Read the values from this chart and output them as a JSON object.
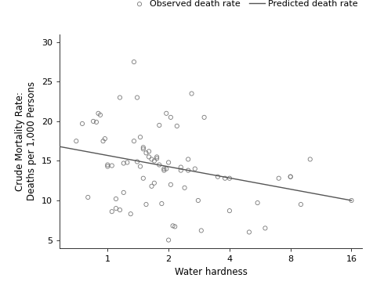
{
  "title": "",
  "xlabel": "Water hardness",
  "ylabel": "Crude Mortality Rate:\nDeaths per 1,000 Persons",
  "xlim_log": [
    0.58,
    18
  ],
  "ylim": [
    4,
    31
  ],
  "yticks": [
    5,
    10,
    15,
    20,
    25,
    30
  ],
  "xticks": [
    1,
    2,
    4,
    8,
    16
  ],
  "scatter_x": [
    0.7,
    0.75,
    0.8,
    0.85,
    0.88,
    0.9,
    0.92,
    0.95,
    0.97,
    1.0,
    1.0,
    1.05,
    1.05,
    1.1,
    1.1,
    1.15,
    1.15,
    1.2,
    1.2,
    1.25,
    1.3,
    1.35,
    1.35,
    1.4,
    1.4,
    1.45,
    1.45,
    1.5,
    1.5,
    1.5,
    1.55,
    1.55,
    1.6,
    1.6,
    1.65,
    1.65,
    1.7,
    1.7,
    1.75,
    1.75,
    1.8,
    1.8,
    1.85,
    1.9,
    1.9,
    1.95,
    1.95,
    2.0,
    2.0,
    2.05,
    2.05,
    2.1,
    2.15,
    2.2,
    2.3,
    2.3,
    2.4,
    2.5,
    2.5,
    2.6,
    2.7,
    2.8,
    2.9,
    3.0,
    3.5,
    3.8,
    4.0,
    4.0,
    5.0,
    5.5,
    6.0,
    7.0,
    8.0,
    8.0,
    9.0,
    10.0,
    16.0
  ],
  "scatter_y": [
    17.5,
    19.7,
    10.4,
    20.0,
    19.9,
    21.0,
    20.8,
    17.5,
    17.8,
    14.3,
    14.5,
    8.6,
    14.4,
    9.0,
    10.2,
    8.8,
    23.0,
    11.0,
    14.7,
    14.8,
    8.3,
    17.5,
    27.5,
    23.0,
    14.9,
    14.3,
    18.0,
    16.7,
    16.5,
    12.8,
    16.0,
    9.5,
    15.5,
    16.2,
    15.2,
    11.8,
    12.2,
    15.0,
    15.5,
    15.3,
    19.5,
    14.5,
    9.6,
    14.0,
    13.8,
    14.0,
    21.0,
    14.8,
    5.0,
    12.0,
    20.5,
    6.8,
    6.7,
    19.4,
    14.2,
    13.8,
    11.6,
    15.2,
    13.8,
    23.5,
    14.0,
    10.0,
    6.2,
    20.5,
    13.0,
    12.8,
    12.8,
    8.7,
    6.0,
    9.7,
    6.5,
    12.8,
    13.0,
    13.0,
    9.5,
    15.2,
    10.0
  ],
  "line_x": [
    0.58,
    16.0
  ],
  "line_y": [
    16.8,
    10.0
  ],
  "scatter_color": "#777777",
  "line_color": "#555555",
  "legend_label_scatter": "Observed death rate",
  "legend_label_line": "Predicted death rate",
  "bg_color": "#ffffff",
  "fontsize_labels": 8.5,
  "fontsize_ticks": 8,
  "fontsize_legend": 8
}
